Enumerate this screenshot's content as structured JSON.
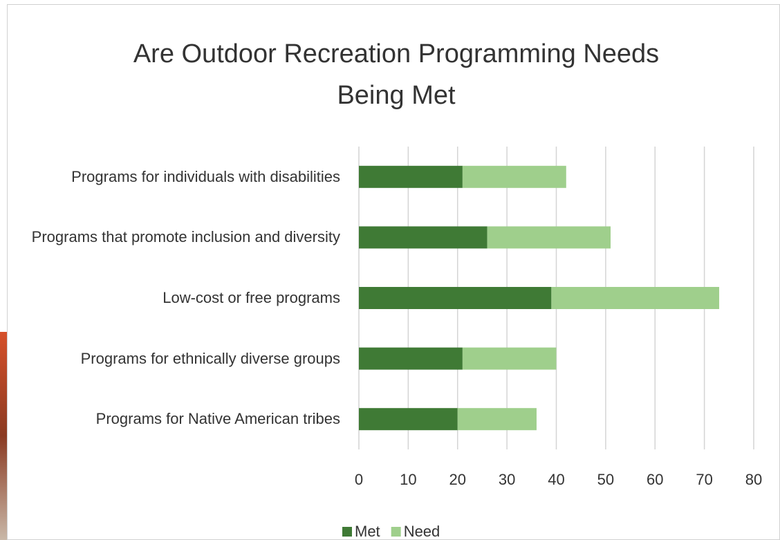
{
  "chart_data": {
    "type": "stacked-barh",
    "title": "Are Outdoor Recreation Programming Needs Being Met",
    "categories": [
      "Programs for individuals with disabilities",
      "Programs that promote inclusion and diversity",
      "Low-cost or free programs",
      "Programs for ethnically diverse groups",
      "Programs for Native American tribes"
    ],
    "series": [
      {
        "name": "Met",
        "color": "#3f7a35",
        "values": [
          21,
          26,
          39,
          21,
          20
        ]
      },
      {
        "name": "Need",
        "color": "#9fcf8c",
        "values": [
          21,
          25,
          34,
          19,
          16
        ]
      }
    ],
    "xlim": [
      0,
      80
    ],
    "xticks": [
      0,
      10,
      20,
      30,
      40,
      50,
      60,
      70,
      80
    ],
    "grid": true,
    "legend": "bottom"
  }
}
